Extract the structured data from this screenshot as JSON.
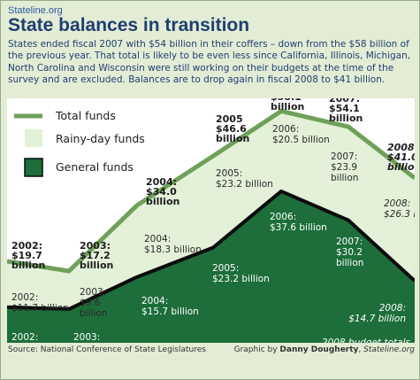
{
  "header": {
    "brand": "Stateline.org",
    "title": "State balances in transition",
    "intro": "States ended fiscal 2007 with $54 billion in their coffers – down from the $58 billion of the previous year. That total is likely to be even less since California, Illinois, Michigan, North Carolina and Wisconsin were still working on their budgets at the time of the survey and are excluded. Balances are to drop again in fiscal 2008 to $41 billion."
  },
  "colors": {
    "total_line": "#6fa05a",
    "rainy_fill": "#e3f1d8",
    "general_fill": "#1d6e3a",
    "general_edge": "#0b0b0b",
    "plot_bg": "#ffffff"
  },
  "chart_data": {
    "type": "area",
    "x": [
      "2002",
      "2003",
      "2004",
      "2005",
      "2006",
      "2007",
      "2008"
    ],
    "ylim": [
      0,
      60
    ],
    "series": [
      {
        "name": "Total funds",
        "values": [
          19.7,
          17.2,
          34.0,
          46.6,
          58.1,
          54.1,
          41.0
        ]
      },
      {
        "name": "Rainy-day funds",
        "values": [
          11.7,
          9.6,
          18.3,
          23.2,
          20.5,
          23.9,
          26.3
        ]
      },
      {
        "name": "General funds",
        "values": [
          8.0,
          7.5,
          15.7,
          23.2,
          37.6,
          30.2,
          14.7
        ]
      }
    ],
    "total_labels": [
      [
        "2002:",
        "$19.7",
        "billion"
      ],
      [
        "2003:",
        "$17.2",
        "billion"
      ],
      [
        "2004:",
        "$34.0",
        "billion"
      ],
      [
        "2005",
        "$46.6",
        "billion"
      ],
      [
        "2006:",
        "$58.1",
        "billion"
      ],
      [
        "2007:",
        "$54.1",
        "billion"
      ],
      [
        "2008:",
        "$41.0",
        "billion"
      ]
    ],
    "rainy_labels": [
      [
        "2002:",
        "$11.7 billion"
      ],
      [
        "2003:",
        "$9.6",
        "billion"
      ],
      [
        "2004:",
        "$18.3 billion"
      ],
      [
        "2005:",
        "$23.2 billion"
      ],
      [
        "2006:",
        "$20.5 billion"
      ],
      [
        "2007:",
        "$23.9",
        "billion"
      ],
      [
        "2008:",
        "$26.3 billion"
      ]
    ],
    "general_labels": [
      [
        "2002:",
        "$8.0 billion"
      ],
      [
        "2003:",
        "$7.5 billion"
      ],
      [
        "2004:",
        "$15.7 billion"
      ],
      [
        "2005:",
        "$23.2 billion"
      ],
      [
        "2006:",
        "$37.6 billion"
      ],
      [
        "2007:",
        "$30.2",
        "billion"
      ],
      [
        "2008:",
        "$14.7 billion"
      ]
    ],
    "projected_note": [
      "2008 budget totals",
      "are projected"
    ],
    "legend": {
      "placement": "top-left",
      "items": [
        "Total funds",
        "Rainy-day funds",
        "General funds"
      ]
    }
  },
  "footer": {
    "source": "Source: National Conference of State Legislatures",
    "credit_prefix": "Graphic by ",
    "credit_author": "Danny Dougherty",
    "credit_sep": ", ",
    "credit_outlet": "Stateline.org"
  }
}
